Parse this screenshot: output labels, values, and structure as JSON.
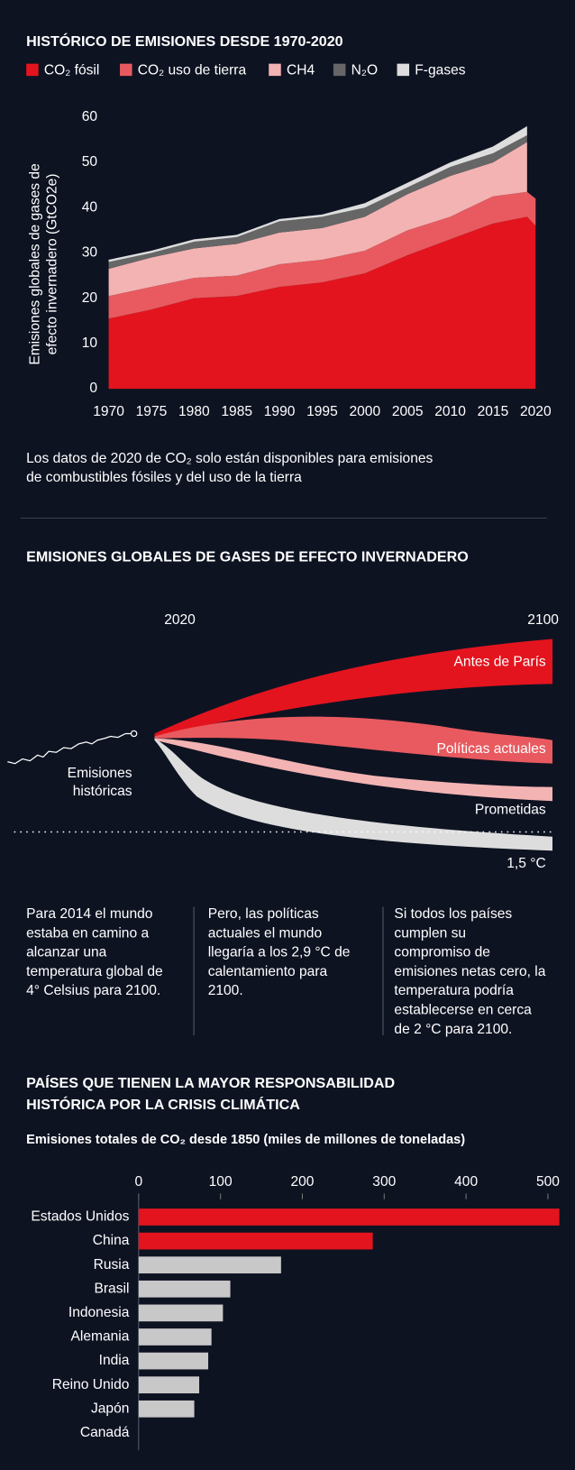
{
  "chart_data": [
    {
      "type": "area",
      "stacked": true,
      "title": "HISTÓRICO DE EMISIONES DESDE 1970-2020",
      "y_label": [
        "Emisiones globales de gases de",
        "efecto invernadero (GtCO2e)"
      ],
      "x": [
        1970,
        1975,
        1980,
        1985,
        1990,
        1995,
        2000,
        2005,
        2010,
        2015,
        2019,
        2020
      ],
      "series": [
        {
          "name": "CO₂ fósil",
          "color": "#e3141e",
          "values": [
            15.5,
            17.5,
            20,
            20.5,
            22.5,
            23.5,
            25.5,
            29.5,
            33,
            36.5,
            38,
            36
          ]
        },
        {
          "name": "CO₂ uso de tierra",
          "color": "#e85a5f",
          "values": [
            5,
            5,
            4.5,
            4.5,
            5,
            5,
            5,
            5.5,
            5,
            6,
            5.5,
            6
          ]
        },
        {
          "name": "CH4",
          "color": "#f3b3b3",
          "values": [
            6,
            6.5,
            6.5,
            7,
            7,
            7,
            7.5,
            8,
            9,
            7.5,
            11,
            null
          ]
        },
        {
          "name": "N₂O",
          "color": "#666666",
          "values": [
            1.5,
            1,
            1.5,
            1.5,
            2.5,
            2.5,
            2,
            1.5,
            2,
            2,
            1.5,
            null
          ]
        },
        {
          "name": "F-gases",
          "color": "#dddddd",
          "values": [
            0.5,
            0.5,
            0.5,
            0.5,
            0.5,
            0.5,
            1,
            1,
            1,
            1.5,
            2,
            null
          ]
        }
      ],
      "xlim": [
        1970,
        2020
      ],
      "xticks": [
        1970,
        1975,
        1980,
        1985,
        1990,
        1995,
        2000,
        2005,
        2010,
        2015,
        2020
      ],
      "ylim": [
        0,
        60
      ],
      "yticks": [
        0,
        10,
        20,
        30,
        40,
        50,
        60
      ],
      "note": [
        "Los datos de 2020 de CO₂ solo están disponibles para emisiones",
        "de combustibles fósiles y del uso de la tierra"
      ]
    },
    {
      "type": "bar",
      "orientation": "horizontal",
      "title": [
        "PAÍSES QUE TIENEN LA MAYOR RESPONSABILIDAD",
        "HISTÓRICA POR LA CRISIS CLIMÁTICA"
      ],
      "subtitle": "Emisiones totales de CO₂ desde 1850 (miles de millones de toneladas)",
      "categories": [
        "Estados Unidos",
        "China",
        "Rusia",
        "Brasil",
        "Indonesia",
        "Alemania",
        "India",
        "Reino Unido",
        "Japón",
        "Canadá"
      ],
      "values": [
        514,
        286,
        174,
        112,
        103,
        89,
        85,
        74,
        68,
        null
      ],
      "colors": [
        "#e3141e",
        "#e3141e",
        "#c8c8c8",
        "#c8c8c8",
        "#c8c8c8",
        "#c8c8c8",
        "#c8c8c8",
        "#c8c8c8",
        "#c8c8c8",
        "#c8c8c8"
      ],
      "xlim": [
        0,
        517
      ],
      "xticks": [
        0,
        100,
        200,
        300,
        400,
        500
      ]
    }
  ],
  "scenarios": {
    "title": "EMISIONES GLOBALES DE GASES DE EFECTO INVERNADERO",
    "start": "2020",
    "end": "2100",
    "labels": [
      "Antes de París",
      "Políticas actuales",
      "Prometidas",
      "1,5 °C"
    ],
    "historic": [
      "Emisiones",
      "históricas"
    ],
    "columns": [
      [
        "Para 2014 el mundo",
        "estaba en camino a",
        "alcanzar una",
        "temperatura global de",
        "4° Celsius para 2100."
      ],
      [
        "Pero, las políticas",
        "actuales el mundo",
        "llegaría a los 2,9 °C de",
        "calentamiento para",
        "2100."
      ],
      [
        "Si todos los países",
        "cumplen su",
        "compromiso de",
        "emisiones netas cero, la",
        "temperatura podría",
        "establecerse en cerca",
        "de 2 °C para 2100."
      ]
    ]
  }
}
